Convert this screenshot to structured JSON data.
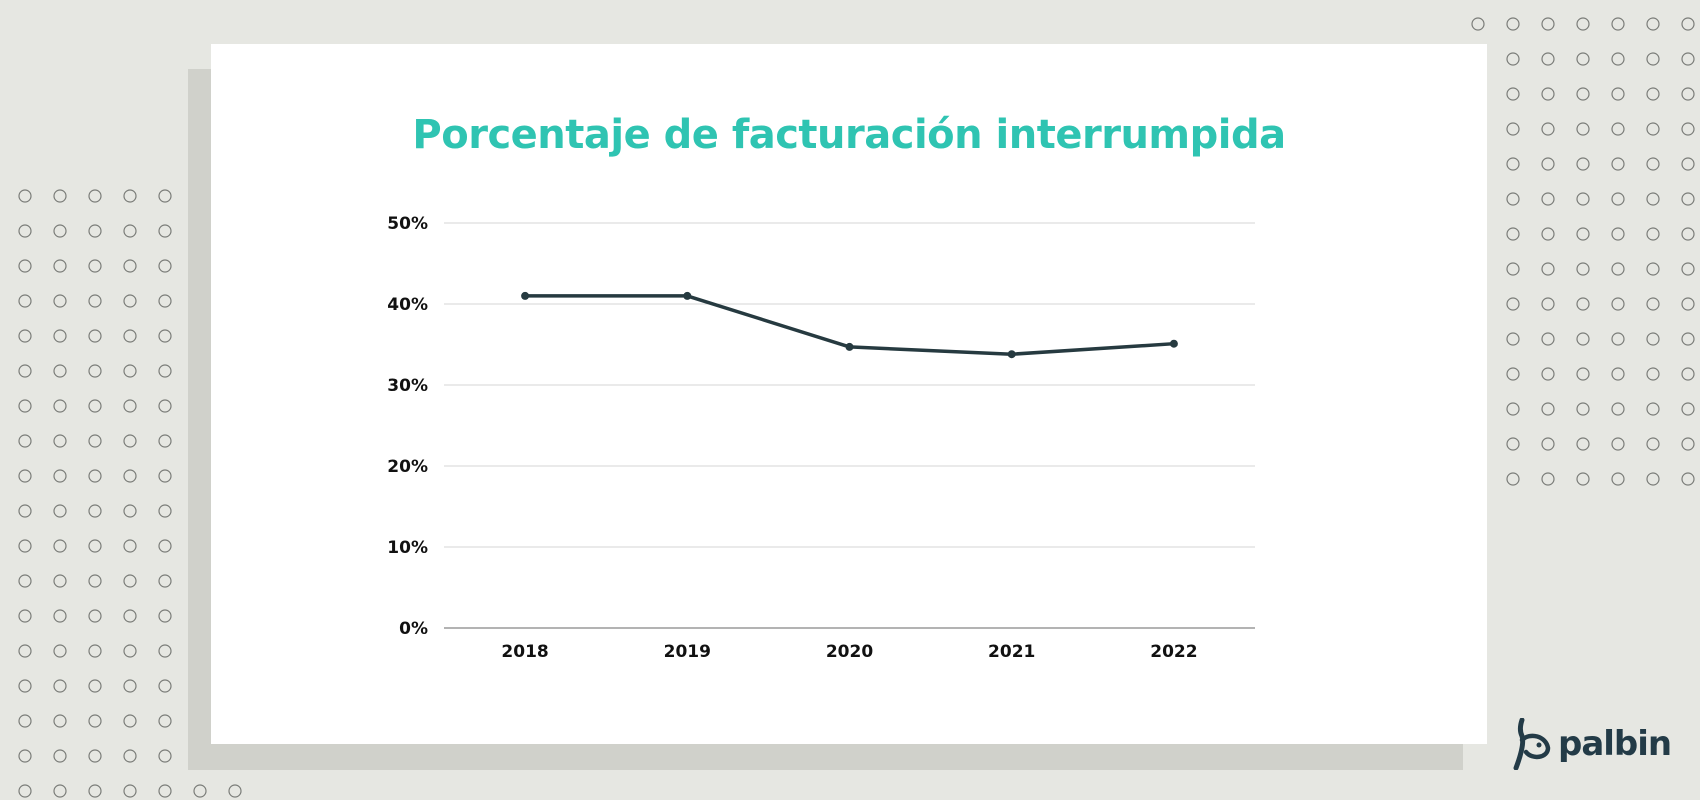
{
  "brand": {
    "name": "palbin",
    "color": "#233b47"
  },
  "chart_data": {
    "type": "line",
    "title": "Porcentaje de facturación interrumpida",
    "title_color": "#2fc4b2",
    "categories": [
      "2018",
      "2019",
      "2020",
      "2021",
      "2022"
    ],
    "values": [
      41,
      41,
      34.7,
      33.8,
      35.1
    ],
    "ylim": [
      0,
      50
    ],
    "yticks": [
      0,
      10,
      20,
      30,
      40,
      50
    ],
    "ytick_labels": [
      "0%",
      "10%",
      "20%",
      "30%",
      "40%",
      "50%"
    ],
    "xlabel": "",
    "ylabel": "",
    "grid": true,
    "line_color": "#263a40"
  }
}
